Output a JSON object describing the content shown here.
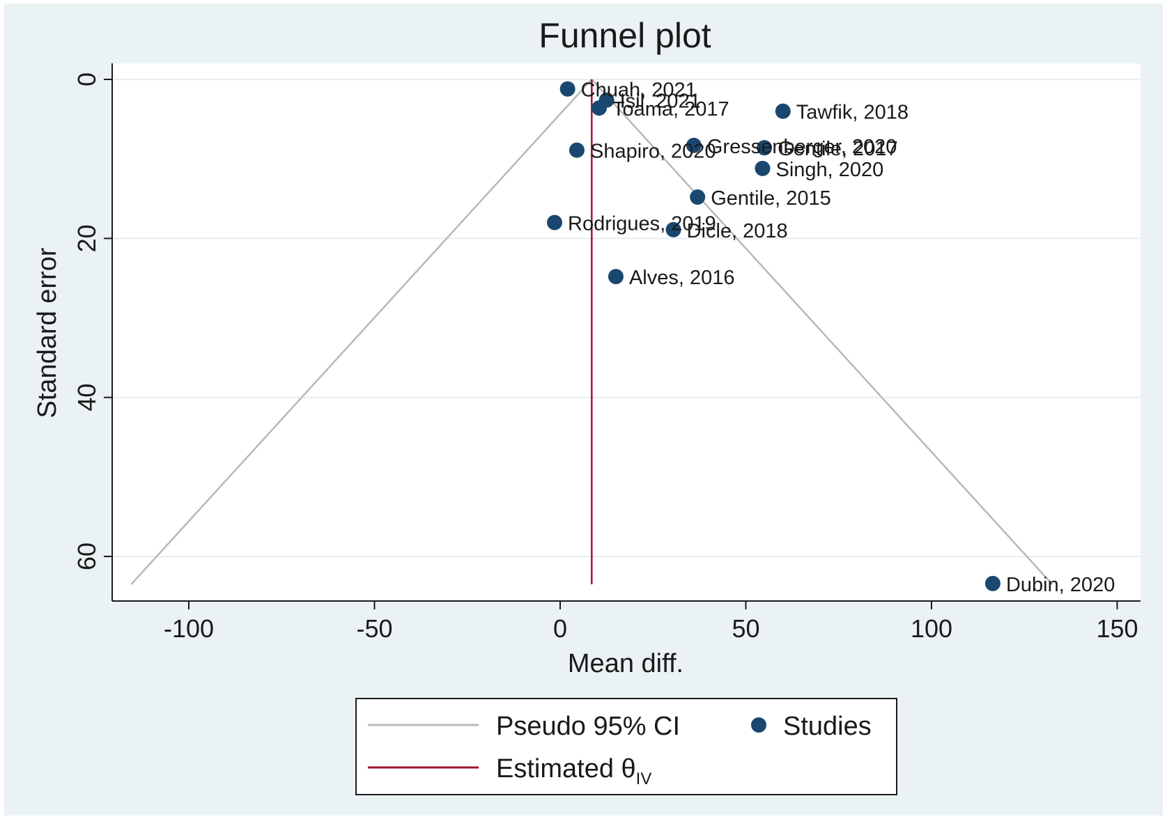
{
  "chart_data": {
    "type": "scatter",
    "title": "Funnel plot",
    "xlabel": "Mean diff.",
    "ylabel": "Standard error",
    "xlim": [
      -121,
      151
    ],
    "ylim": [
      0,
      66
    ],
    "y_reversed": true,
    "xticks": [
      -100,
      -50,
      0,
      50,
      100,
      150
    ],
    "yticks": [
      0,
      20,
      40,
      60
    ],
    "grid": true,
    "legend_position": "bottom",
    "colors": {
      "studies": "#1a476f",
      "pseudo_ci": "#b8b8b8",
      "estimate": "#a01530",
      "plot_background": "#ffffff",
      "outer_background": "#eaf2f3",
      "grid": "#e8eef0"
    },
    "estimate": {
      "x": 8.5,
      "y_range": [
        0,
        63.5
      ]
    },
    "pseudo_ci": {
      "apex": [
        8.5,
        0
      ],
      "left_bottom": [
        -115.5,
        63.5
      ],
      "right_bottom": [
        132.5,
        63.5
      ]
    },
    "points": [
      {
        "label": "Chuah, 2021",
        "x": 2,
        "y": 1.2
      },
      {
        "label": "Isil, 2021",
        "x": 12.5,
        "y": 2.6
      },
      {
        "label": "Toama, 2017",
        "x": 10.5,
        "y": 3.6
      },
      {
        "label": "Tawfik, 2018",
        "x": 60,
        "y": 4.0
      },
      {
        "label": "Gressenberger, 2020",
        "x": 36,
        "y": 8.3
      },
      {
        "label": "Gentile, 2017",
        "x": 55,
        "y": 8.6
      },
      {
        "label": "Shapiro, 2020",
        "x": 4.5,
        "y": 8.9
      },
      {
        "label": "Singh, 2020",
        "x": 54.5,
        "y": 11.2
      },
      {
        "label": "Gentile, 2015",
        "x": 37,
        "y": 14.8
      },
      {
        "label": "Rodrigues, 2019",
        "x": -1.5,
        "y": 18.0
      },
      {
        "label": "Dicle, 2018",
        "x": 30.5,
        "y": 18.9
      },
      {
        "label": "Alves, 2016",
        "x": 15,
        "y": 24.8
      },
      {
        "label": "Dubin, 2020",
        "x": 116.5,
        "y": 63.4
      }
    ],
    "legend": {
      "pseudo_ci_label": "Pseudo 95% CI",
      "studies_label": "Studies",
      "estimate_label": "Estimated θ",
      "estimate_subscript": "IV"
    }
  }
}
